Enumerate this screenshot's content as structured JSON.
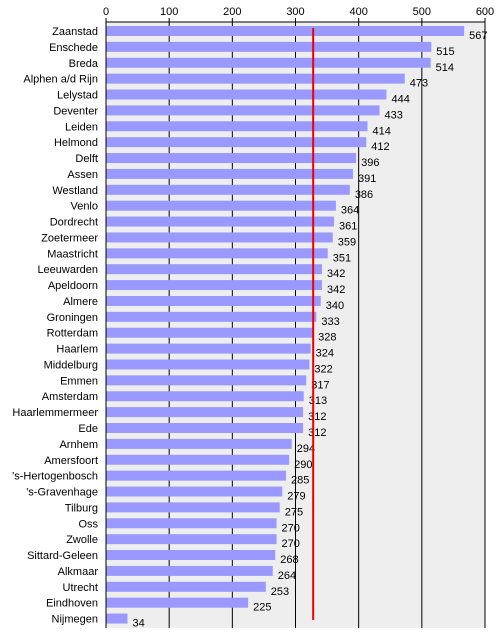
{
  "chart_data": {
    "type": "bar",
    "orientation": "horizontal",
    "title": "",
    "xlabel": "",
    "ylabel": "",
    "xlim": [
      0,
      600
    ],
    "ticks": [
      0,
      100,
      200,
      300,
      400,
      500,
      600
    ],
    "tick_labels": [
      "0",
      "100",
      "200",
      "300",
      "400",
      "500",
      "600"
    ],
    "axis_position": "top",
    "grid": true,
    "legend": "none",
    "reference_line": {
      "value": 328,
      "color": "#ee0000"
    },
    "bar_color": "#9999ff",
    "plot_background": "#eeeeee",
    "categories": [
      "Zaanstad",
      "Enschede",
      "Breda",
      "Alphen a/d Rijn",
      "Lelystad",
      "Deventer",
      "Leiden",
      "Helmond",
      "Delft",
      "Assen",
      "Westland",
      "Venlo",
      "Dordrecht",
      "Zoetermeer",
      "Maastricht",
      "Leeuwarden",
      "Apeldoorn",
      "Almere",
      "Groningen",
      "Rotterdam",
      "Haarlem",
      "Middelburg",
      "Emmen",
      "Amsterdam",
      "Haarlemmermeer",
      "Ede",
      "Arnhem",
      "Amersfoort",
      "'s-Hertogenbosch",
      "'s-Gravenhage",
      "Tilburg",
      "Oss",
      "Zwolle",
      "Sittard-Geleen",
      "Alkmaar",
      "Utrecht",
      "Eindhoven",
      "Nijmegen"
    ],
    "values": [
      567,
      515,
      514,
      473,
      444,
      433,
      414,
      412,
      396,
      391,
      386,
      364,
      361,
      359,
      351,
      342,
      342,
      340,
      333,
      328,
      324,
      322,
      317,
      313,
      312,
      312,
      294,
      290,
      285,
      279,
      275,
      270,
      270,
      268,
      264,
      253,
      225,
      34
    ],
    "value_labels": [
      "567",
      "515",
      "514",
      "473",
      "444",
      "433",
      "414",
      "412",
      "396",
      "391",
      "386",
      "364",
      "361",
      "359",
      "351",
      "342",
      "342",
      "340",
      "333",
      "328",
      "324",
      "322",
      "317",
      "313",
      "312",
      "312",
      "294",
      "290",
      "285",
      "279",
      "275",
      "270",
      "270",
      "268",
      "264",
      "253",
      "225",
      "34"
    ]
  }
}
